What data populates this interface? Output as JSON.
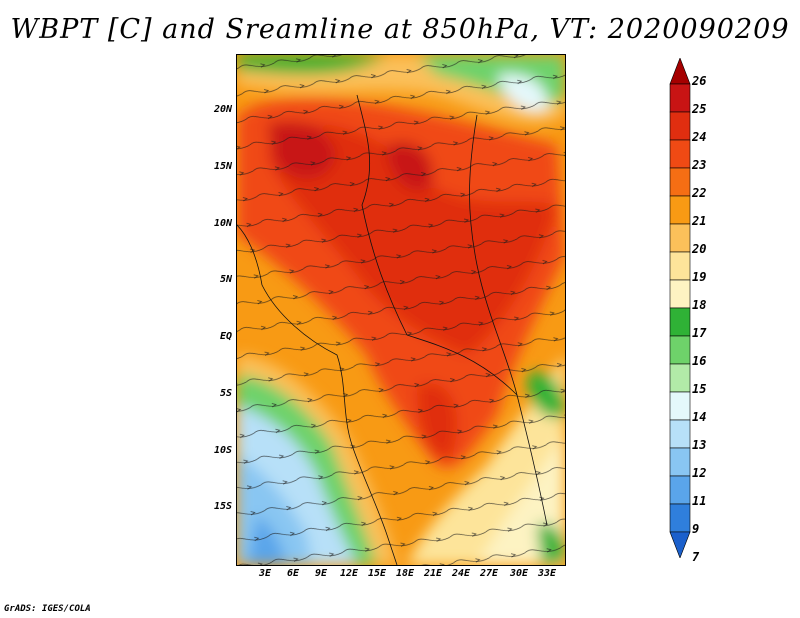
{
  "title": "WBPT [C] and Sreamline at 850hPa, VT: 2020090209",
  "map": {
    "lat_labels": [
      "20N",
      "15N",
      "10N",
      "5N",
      "EQ",
      "5S",
      "10S",
      "15S"
    ],
    "lon_labels": [
      "3E",
      "6E",
      "9E",
      "12E",
      "15E",
      "18E",
      "21E",
      "24E",
      "27E",
      "30E",
      "33E"
    ]
  },
  "colorbar": {
    "levels": [
      "26",
      "25",
      "24",
      "23",
      "22",
      "21",
      "20",
      "19",
      "18",
      "17",
      "16",
      "15",
      "14",
      "13",
      "12",
      "11",
      "9",
      "7"
    ],
    "colors": [
      "#a50000",
      "#c81414",
      "#e02e10",
      "#f04a14",
      "#f56e14",
      "#f89a14",
      "#fbc05a",
      "#fde49a",
      "#fdf3c2",
      "#2fb236",
      "#6ed26a",
      "#b2eaa8",
      "#e4f8fb",
      "#b7e0f8",
      "#89c6f2",
      "#5aa5ea",
      "#2f7fdc",
      "#1b60cc"
    ]
  },
  "credit": "GrADS: IGES/COLA"
}
